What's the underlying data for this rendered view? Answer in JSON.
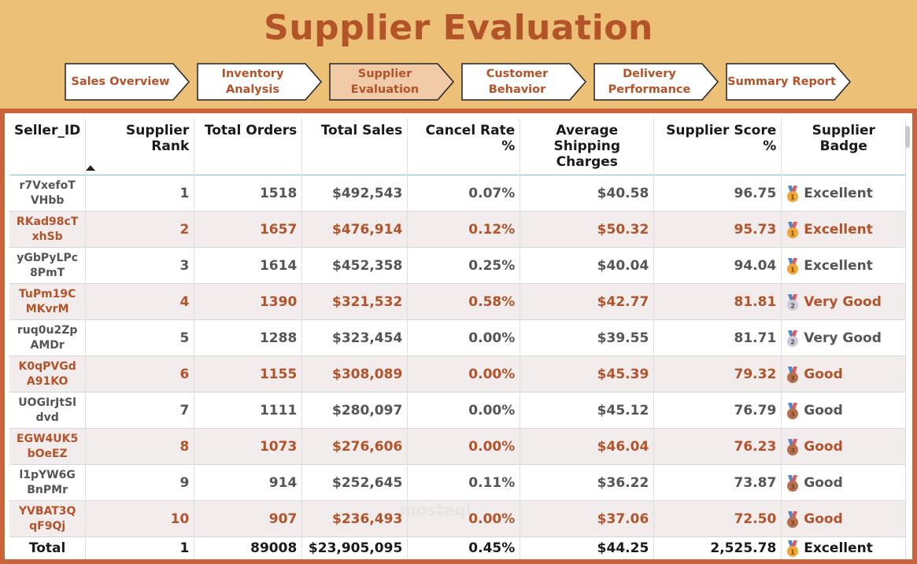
{
  "title": "Supplier Evaluation",
  "nav": [
    {
      "label": "Sales Overview",
      "active": false
    },
    {
      "label": "Inventory\nAnalysis",
      "active": false
    },
    {
      "label": "Supplier\nEvaluation",
      "active": true
    },
    {
      "label": "Customer\nBehavior",
      "active": false
    },
    {
      "label": "Delivery\nPerformance",
      "active": false
    },
    {
      "label": "Summary Report",
      "active": false
    }
  ],
  "table": {
    "headers": [
      "Seller_ID",
      "Supplier Rank",
      "Total Orders",
      "Total Sales",
      "Cancel Rate %",
      "Average Shipping Charges",
      "Supplier Score %",
      "Supplier Badge"
    ],
    "sorted_column": "Supplier Rank",
    "sort_direction": "ascending",
    "rows": [
      {
        "seller_id": "r7VxefoT\nVHbb",
        "rank": "1",
        "orders": "1518",
        "sales": "$492,543",
        "cancel": "0.07%",
        "shipping": "$40.58",
        "score": "96.75",
        "badge": "Excellent",
        "medal": "gold-medal-icon"
      },
      {
        "seller_id": "RKad98cT\nxhSb",
        "rank": "2",
        "orders": "1657",
        "sales": "$476,914",
        "cancel": "0.12%",
        "shipping": "$50.32",
        "score": "95.73",
        "badge": "Excellent",
        "medal": "gold-medal-icon"
      },
      {
        "seller_id": "yGbPyLPc\n8PmT",
        "rank": "3",
        "orders": "1614",
        "sales": "$452,358",
        "cancel": "0.25%",
        "shipping": "$40.04",
        "score": "94.04",
        "badge": "Excellent",
        "medal": "gold-medal-icon"
      },
      {
        "seller_id": "TuPm19C\nMKvrM",
        "rank": "4",
        "orders": "1390",
        "sales": "$321,532",
        "cancel": "0.58%",
        "shipping": "$42.77",
        "score": "81.81",
        "badge": "Very Good",
        "medal": "silver-medal-icon"
      },
      {
        "seller_id": "ruq0u2Zp\nAMDr",
        "rank": "5",
        "orders": "1288",
        "sales": "$323,454",
        "cancel": "0.00%",
        "shipping": "$39.55",
        "score": "81.71",
        "badge": "Very Good",
        "medal": "silver-medal-icon"
      },
      {
        "seller_id": "K0qPVGd\nA91KO",
        "rank": "6",
        "orders": "1155",
        "sales": "$308,089",
        "cancel": "0.00%",
        "shipping": "$45.39",
        "score": "79.32",
        "badge": "Good",
        "medal": "bronze-medal-icon"
      },
      {
        "seller_id": "UOGIrJtSl\ndvd",
        "rank": "7",
        "orders": "1111",
        "sales": "$280,097",
        "cancel": "0.00%",
        "shipping": "$45.12",
        "score": "76.79",
        "badge": "Good",
        "medal": "bronze-medal-icon"
      },
      {
        "seller_id": "EGW4UK5\nbOeEZ",
        "rank": "8",
        "orders": "1073",
        "sales": "$276,606",
        "cancel": "0.00%",
        "shipping": "$46.04",
        "score": "76.23",
        "badge": "Good",
        "medal": "bronze-medal-icon"
      },
      {
        "seller_id": "l1pYW6G\nBnPMr",
        "rank": "9",
        "orders": "914",
        "sales": "$252,645",
        "cancel": "0.11%",
        "shipping": "$36.22",
        "score": "73.87",
        "badge": "Good",
        "medal": "bronze-medal-icon"
      },
      {
        "seller_id": "YVBAT3Q\nqF9Qj",
        "rank": "10",
        "orders": "907",
        "sales": "$236,493",
        "cancel": "0.00%",
        "shipping": "$37.06",
        "score": "72.50",
        "badge": "Good",
        "medal": "bronze-medal-icon"
      }
    ],
    "total": {
      "seller_id": "Total",
      "rank": "1",
      "orders": "89008",
      "sales": "$23,905,095",
      "cancel": "0.45%",
      "shipping": "$44.25",
      "score": "2,525.78",
      "badge": "Excellent",
      "medal": "gold-medal-icon"
    }
  },
  "colors": {
    "header_bg": "#ecc077",
    "accent": "#b2532a",
    "frame": "#c8633a",
    "active_tab": "#f1cba8",
    "alt_row": "#f2ecec"
  }
}
